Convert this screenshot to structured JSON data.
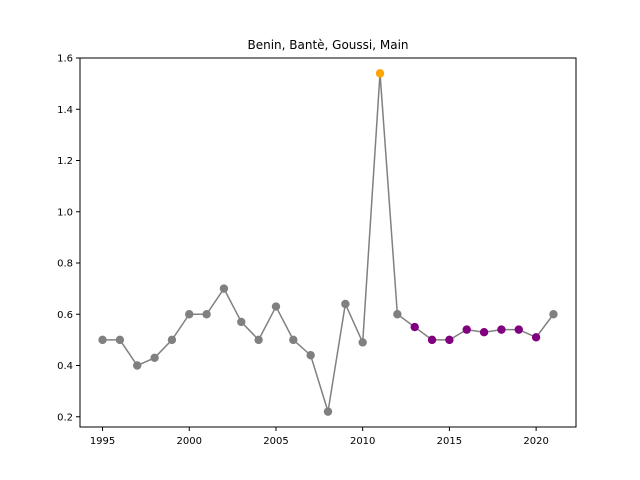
{
  "chart_data": {
    "type": "line",
    "title": "Benin, Bantè, Goussi, Main",
    "xlabel": "",
    "ylabel": "",
    "xlim": [
      1993.7,
      2022.3
    ],
    "ylim": [
      0.16,
      1.6
    ],
    "xticks": [
      1995,
      2000,
      2005,
      2010,
      2015,
      2020
    ],
    "yticks": [
      0.2,
      0.4,
      0.6,
      0.8,
      1.0,
      1.2,
      1.4,
      1.6
    ],
    "ytick_labels": [
      "0.2",
      "0.4",
      "0.6",
      "0.8",
      "1.0",
      "1.2",
      "1.4",
      "1.6"
    ],
    "grid": false,
    "line_color": "#808080",
    "marker_colors": {
      "normal": "#808080",
      "peak": "#FFA500",
      "recent": "#800080"
    },
    "series": [
      {
        "x": [
          1995,
          1996,
          1997,
          1998,
          1999,
          2000,
          2001,
          2002,
          2003,
          2004,
          2005,
          2006,
          2007,
          2008,
          2009,
          2010,
          2011,
          2012,
          2013,
          2014,
          2015,
          2016,
          2017,
          2018,
          2019,
          2020,
          2021
        ],
        "y": [
          0.5,
          0.5,
          0.4,
          0.43,
          0.5,
          0.6,
          0.6,
          0.7,
          0.57,
          0.5,
          0.63,
          0.5,
          0.44,
          0.22,
          0.64,
          0.49,
          1.54,
          0.6,
          0.55,
          0.5,
          0.5,
          0.54,
          0.53,
          0.54,
          0.54,
          0.51,
          0.6
        ],
        "point_category": [
          "normal",
          "normal",
          "normal",
          "normal",
          "normal",
          "normal",
          "normal",
          "normal",
          "normal",
          "normal",
          "normal",
          "normal",
          "normal",
          "normal",
          "normal",
          "normal",
          "peak",
          "normal",
          "recent",
          "recent",
          "recent",
          "recent",
          "recent",
          "recent",
          "recent",
          "recent",
          "normal"
        ]
      }
    ]
  }
}
